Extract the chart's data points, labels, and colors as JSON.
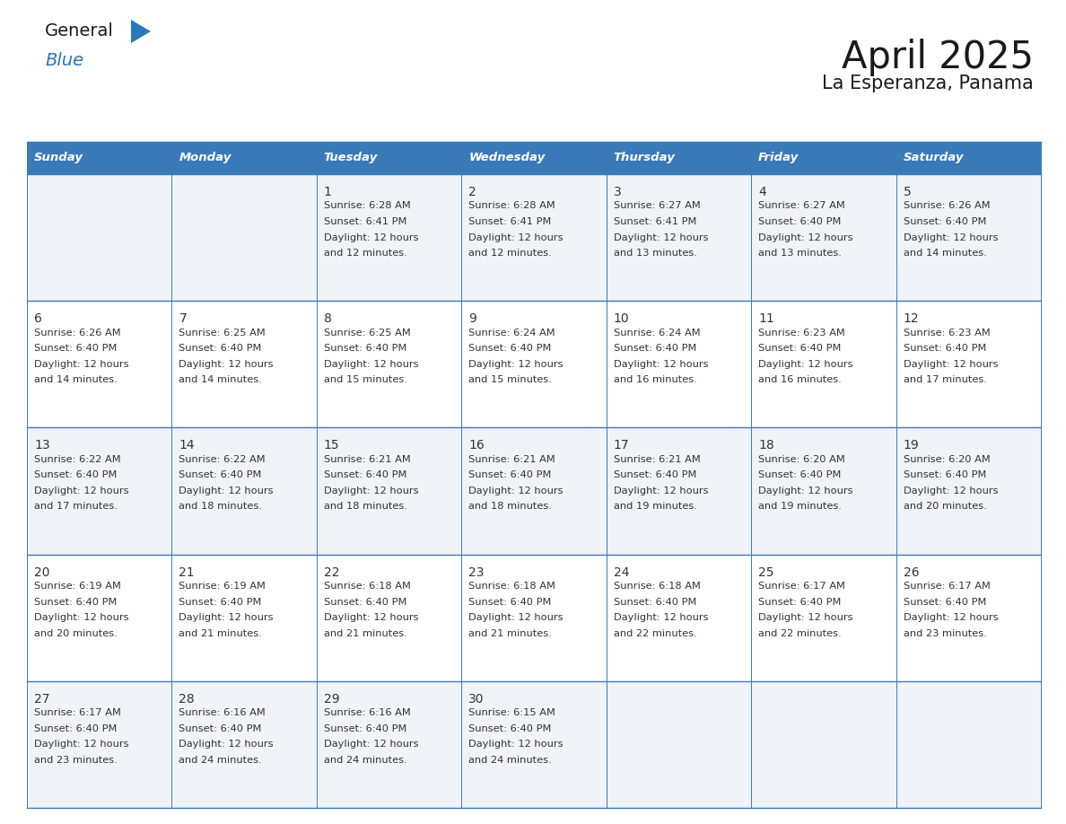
{
  "title": "April 2025",
  "subtitle": "La Esperanza, Panama",
  "days_of_week": [
    "Sunday",
    "Monday",
    "Tuesday",
    "Wednesday",
    "Thursday",
    "Friday",
    "Saturday"
  ],
  "header_bg_color": "#3a7ab8",
  "header_text_color": "#ffffff",
  "row_bg_odd": "#f0f3f7",
  "row_bg_even": "#ffffff",
  "border_color": "#3a7ab8",
  "text_color": "#333333",
  "logo_blue": "#2878be",
  "logo_dark": "#222222",
  "calendar_data": [
    [
      null,
      null,
      {
        "day": 1,
        "sunrise": "6:28 AM",
        "sunset": "6:41 PM",
        "daylight_l1": "12 hours",
        "daylight_l2": "and 12 minutes."
      },
      {
        "day": 2,
        "sunrise": "6:28 AM",
        "sunset": "6:41 PM",
        "daylight_l1": "12 hours",
        "daylight_l2": "and 12 minutes."
      },
      {
        "day": 3,
        "sunrise": "6:27 AM",
        "sunset": "6:41 PM",
        "daylight_l1": "12 hours",
        "daylight_l2": "and 13 minutes."
      },
      {
        "day": 4,
        "sunrise": "6:27 AM",
        "sunset": "6:40 PM",
        "daylight_l1": "12 hours",
        "daylight_l2": "and 13 minutes."
      },
      {
        "day": 5,
        "sunrise": "6:26 AM",
        "sunset": "6:40 PM",
        "daylight_l1": "12 hours",
        "daylight_l2": "and 14 minutes."
      }
    ],
    [
      {
        "day": 6,
        "sunrise": "6:26 AM",
        "sunset": "6:40 PM",
        "daylight_l1": "12 hours",
        "daylight_l2": "and 14 minutes."
      },
      {
        "day": 7,
        "sunrise": "6:25 AM",
        "sunset": "6:40 PM",
        "daylight_l1": "12 hours",
        "daylight_l2": "and 14 minutes."
      },
      {
        "day": 8,
        "sunrise": "6:25 AM",
        "sunset": "6:40 PM",
        "daylight_l1": "12 hours",
        "daylight_l2": "and 15 minutes."
      },
      {
        "day": 9,
        "sunrise": "6:24 AM",
        "sunset": "6:40 PM",
        "daylight_l1": "12 hours",
        "daylight_l2": "and 15 minutes."
      },
      {
        "day": 10,
        "sunrise": "6:24 AM",
        "sunset": "6:40 PM",
        "daylight_l1": "12 hours",
        "daylight_l2": "and 16 minutes."
      },
      {
        "day": 11,
        "sunrise": "6:23 AM",
        "sunset": "6:40 PM",
        "daylight_l1": "12 hours",
        "daylight_l2": "and 16 minutes."
      },
      {
        "day": 12,
        "sunrise": "6:23 AM",
        "sunset": "6:40 PM",
        "daylight_l1": "12 hours",
        "daylight_l2": "and 17 minutes."
      }
    ],
    [
      {
        "day": 13,
        "sunrise": "6:22 AM",
        "sunset": "6:40 PM",
        "daylight_l1": "12 hours",
        "daylight_l2": "and 17 minutes."
      },
      {
        "day": 14,
        "sunrise": "6:22 AM",
        "sunset": "6:40 PM",
        "daylight_l1": "12 hours",
        "daylight_l2": "and 18 minutes."
      },
      {
        "day": 15,
        "sunrise": "6:21 AM",
        "sunset": "6:40 PM",
        "daylight_l1": "12 hours",
        "daylight_l2": "and 18 minutes."
      },
      {
        "day": 16,
        "sunrise": "6:21 AM",
        "sunset": "6:40 PM",
        "daylight_l1": "12 hours",
        "daylight_l2": "and 18 minutes."
      },
      {
        "day": 17,
        "sunrise": "6:21 AM",
        "sunset": "6:40 PM",
        "daylight_l1": "12 hours",
        "daylight_l2": "and 19 minutes."
      },
      {
        "day": 18,
        "sunrise": "6:20 AM",
        "sunset": "6:40 PM",
        "daylight_l1": "12 hours",
        "daylight_l2": "and 19 minutes."
      },
      {
        "day": 19,
        "sunrise": "6:20 AM",
        "sunset": "6:40 PM",
        "daylight_l1": "12 hours",
        "daylight_l2": "and 20 minutes."
      }
    ],
    [
      {
        "day": 20,
        "sunrise": "6:19 AM",
        "sunset": "6:40 PM",
        "daylight_l1": "12 hours",
        "daylight_l2": "and 20 minutes."
      },
      {
        "day": 21,
        "sunrise": "6:19 AM",
        "sunset": "6:40 PM",
        "daylight_l1": "12 hours",
        "daylight_l2": "and 21 minutes."
      },
      {
        "day": 22,
        "sunrise": "6:18 AM",
        "sunset": "6:40 PM",
        "daylight_l1": "12 hours",
        "daylight_l2": "and 21 minutes."
      },
      {
        "day": 23,
        "sunrise": "6:18 AM",
        "sunset": "6:40 PM",
        "daylight_l1": "12 hours",
        "daylight_l2": "and 21 minutes."
      },
      {
        "day": 24,
        "sunrise": "6:18 AM",
        "sunset": "6:40 PM",
        "daylight_l1": "12 hours",
        "daylight_l2": "and 22 minutes."
      },
      {
        "day": 25,
        "sunrise": "6:17 AM",
        "sunset": "6:40 PM",
        "daylight_l1": "12 hours",
        "daylight_l2": "and 22 minutes."
      },
      {
        "day": 26,
        "sunrise": "6:17 AM",
        "sunset": "6:40 PM",
        "daylight_l1": "12 hours",
        "daylight_l2": "and 23 minutes."
      }
    ],
    [
      {
        "day": 27,
        "sunrise": "6:17 AM",
        "sunset": "6:40 PM",
        "daylight_l1": "12 hours",
        "daylight_l2": "and 23 minutes."
      },
      {
        "day": 28,
        "sunrise": "6:16 AM",
        "sunset": "6:40 PM",
        "daylight_l1": "12 hours",
        "daylight_l2": "and 24 minutes."
      },
      {
        "day": 29,
        "sunrise": "6:16 AM",
        "sunset": "6:40 PM",
        "daylight_l1": "12 hours",
        "daylight_l2": "and 24 minutes."
      },
      {
        "day": 30,
        "sunrise": "6:15 AM",
        "sunset": "6:40 PM",
        "daylight_l1": "12 hours",
        "daylight_l2": "and 24 minutes."
      },
      null,
      null,
      null
    ]
  ]
}
